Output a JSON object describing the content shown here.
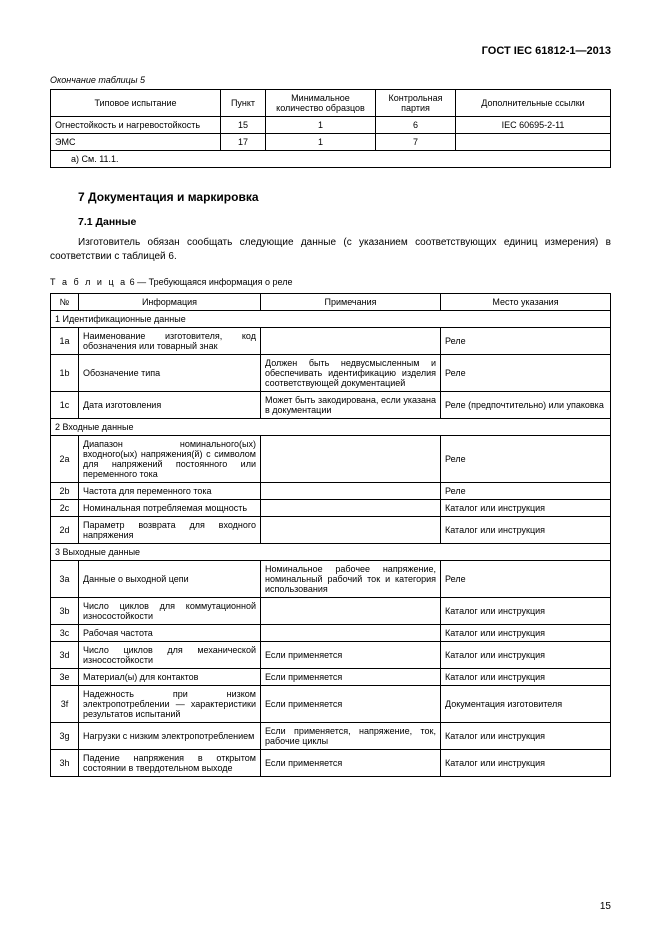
{
  "doc_id": "ГОСТ IEC 61812-1—2013",
  "table5": {
    "caption_end": "Окончание таблицы 5",
    "headers": {
      "test": "Типовое испытание",
      "clause": "Пункт",
      "min_samples": "Минимальное количество образцов",
      "control_batch": "Контрольная партия",
      "extra_refs": "Дополнительные ссылки"
    },
    "rows": [
      {
        "test": "Огнестойкость и нагревостойкость",
        "clause": "15",
        "min": "1",
        "batch": "6",
        "ref": "IEC 60695-2-11"
      },
      {
        "test": "ЭМС",
        "clause": "17",
        "min": "1",
        "batch": "7",
        "ref": ""
      }
    ],
    "footer": "a) См. 11.1."
  },
  "section7": {
    "heading": "7  Документация и маркировка",
    "sub": "7.1  Данные",
    "intro": "Изготовитель обязан сообщать следующие данные (с указанием соответствующих единиц измерения) в соответствии с таблицей 6."
  },
  "table6": {
    "caption_prefix": "Т а б л и ц а",
    "caption_rest": " 6 — Требующаяся информация о реле",
    "headers": {
      "n": "№",
      "info": "Информация",
      "notes": "Примечания",
      "place": "Место указания"
    },
    "groups": [
      {
        "title": "1 Идентификационные данные",
        "rows": [
          {
            "n": "1a",
            "info": "Наименование изготовителя, код обозначения или товарный знак",
            "notes": "",
            "place": "Реле"
          },
          {
            "n": "1b",
            "info": "Обозначение типа",
            "notes": "Должен быть недвусмысленным и обеспечивать идентификацию изделия соответствующей документацией",
            "place": "Реле"
          },
          {
            "n": "1c",
            "info": "Дата изготовления",
            "notes": "Может быть закодирована, если указана в документации",
            "place": "Реле (предпочтительно) или упаковка"
          }
        ]
      },
      {
        "title": "2 Входные данные",
        "rows": [
          {
            "n": "2a",
            "info": "Диапазон номинального(ых) входного(ых) напряжения(й) с символом для напряжений постоянного или переменного тока",
            "notes": "",
            "place": "Реле"
          },
          {
            "n": "2b",
            "info": "Частота для переменного тока",
            "notes": "",
            "place": "Реле"
          },
          {
            "n": "2c",
            "info": "Номинальная потребляемая мощность",
            "notes": "",
            "place": "Каталог или инструкция"
          },
          {
            "n": "2d",
            "info": "Параметр возврата для входного напряжения",
            "notes": "",
            "place": "Каталог или инструкция"
          }
        ]
      },
      {
        "title": "3 Выходные данные",
        "rows": [
          {
            "n": "3a",
            "info": "Данные о выходной цепи",
            "notes": "Номинальное рабочее напряжение, номинальный рабочий ток и категория использования",
            "place": "Реле"
          },
          {
            "n": "3b",
            "info": "Число циклов для коммутационной износостойкости",
            "notes": "",
            "place": "Каталог или инструкция"
          },
          {
            "n": "3c",
            "info": "Рабочая частота",
            "notes": "",
            "place": "Каталог или инструкция"
          },
          {
            "n": "3d",
            "info": "Число циклов для механической износостойкости",
            "notes": "Если применяется",
            "place": "Каталог или инструкция"
          },
          {
            "n": "3e",
            "info": "Материал(ы) для контактов",
            "notes": "Если применяется",
            "place": "Каталог или инструкция"
          },
          {
            "n": "3f",
            "info": "Надежность при низком электропотреблении — характеристики результатов испытаний",
            "notes": "Если применяется",
            "place": "Документация изготовителя"
          },
          {
            "n": "3g",
            "info": "Нагрузки с низким электропотреблением",
            "notes": "Если применяется, напряжение, ток, рабочие циклы",
            "place": "Каталог или инструкция"
          },
          {
            "n": "3h",
            "info": "Падение напряжения в открытом состоянии в твердотельном выходе",
            "notes": "Если применяется",
            "place": "Каталог или инструкция"
          }
        ]
      }
    ]
  },
  "page_number": "15"
}
